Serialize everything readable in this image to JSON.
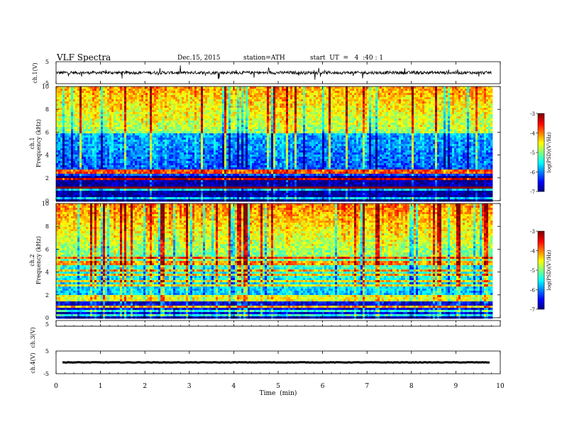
{
  "header": {
    "title": "VLF Spectra",
    "date": "Dec.15, 2015",
    "station": "station=ATH",
    "start": "start  UT  =   4  :40 : 1"
  },
  "chart_data": [
    {
      "type": "line",
      "name": "ch1-voltage",
      "ylabel": "ch.1(V)",
      "ylim": [
        -5,
        5
      ],
      "yticks": [
        "5",
        "-5"
      ],
      "baseline": 0
    },
    {
      "type": "heatmap",
      "name": "ch1-spectrogram",
      "ylabel": "ch.1",
      "ylabel2": "Frequency  (kHz)",
      "ylim": [
        0,
        10
      ],
      "yticks": [
        "0",
        "2",
        "4",
        "6",
        "8",
        "10"
      ],
      "colorbar": {
        "label": "log(PSD)(V²/Hz)",
        "range": [
          -7,
          -3
        ],
        "ticks": [
          "-3",
          "-4",
          "-5",
          "-6",
          "-7"
        ]
      }
    },
    {
      "type": "heatmap",
      "name": "ch2-spectrogram",
      "ylabel": "ch.2",
      "ylabel2": "Frequency  (kHz)",
      "ylim": [
        0,
        10
      ],
      "yticks": [
        "0",
        "2",
        "4",
        "6",
        "8",
        "10"
      ],
      "colorbar": {
        "label": "log(PSD)(V²/Hz)",
        "range": [
          -7,
          -3
        ],
        "ticks": [
          "-3",
          "-4",
          "-5",
          "-6",
          "-7"
        ]
      }
    },
    {
      "type": "line",
      "name": "ch3-voltage",
      "ylabel": "ch.3(V)",
      "ylim": [
        -5,
        5
      ],
      "yticks": [
        "5"
      ]
    },
    {
      "type": "line",
      "name": "ch4-voltage",
      "ylabel": "ch.4(V)",
      "ylim": [
        -5,
        5
      ],
      "yticks": [
        "5",
        "-5"
      ],
      "baseline": 0
    }
  ],
  "xaxis": {
    "label": "Time  (min)",
    "xlim": [
      0,
      10
    ],
    "ticks": [
      "0",
      "1",
      "2",
      "3",
      "4",
      "5",
      "6",
      "7",
      "8",
      "9",
      "10"
    ],
    "data_end": 9.8
  },
  "colors": {
    "axis": "#000000",
    "trace": "#000000"
  }
}
